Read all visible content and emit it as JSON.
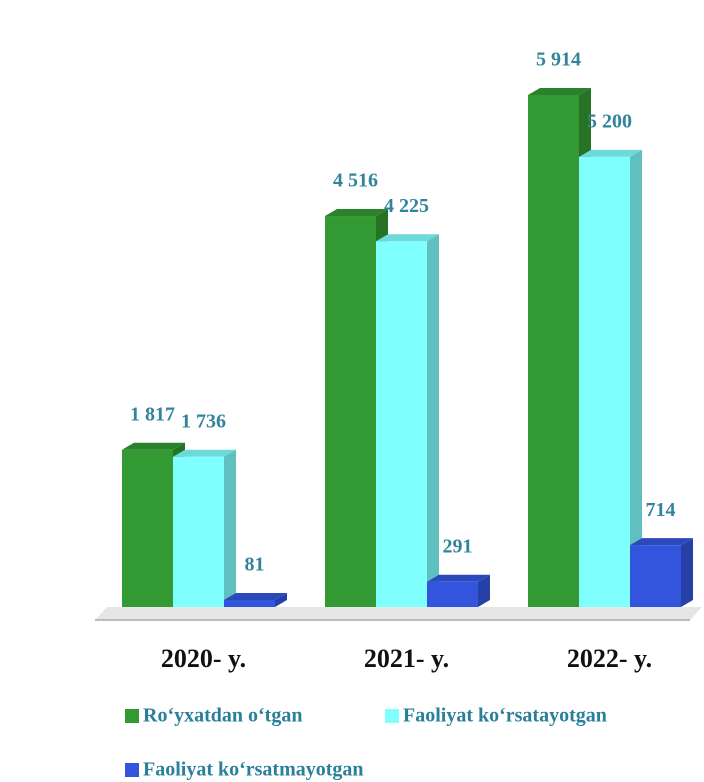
{
  "chart_data": {
    "type": "bar3d",
    "categories": [
      "2020- y.",
      "2021- y.",
      "2022- y."
    ],
    "series": [
      {
        "name": "Ro‘yxatdan o‘tgan",
        "color": "#339933",
        "values": [
          1817,
          4516,
          5914
        ],
        "value_labels": [
          "1 817",
          "4 516",
          "5 914"
        ]
      },
      {
        "name": "Faoliyat ko‘rsatayotgan",
        "color": "#80ffff",
        "values": [
          1736,
          4225,
          5200
        ],
        "value_labels": [
          "1 736",
          "4 225",
          "5 200"
        ]
      },
      {
        "name": "Faoliyat ko‘rsatmayotgan",
        "color": "#3355dd",
        "values": [
          81,
          291,
          714
        ],
        "value_labels": [
          "81",
          "291",
          "714"
        ]
      }
    ]
  }
}
